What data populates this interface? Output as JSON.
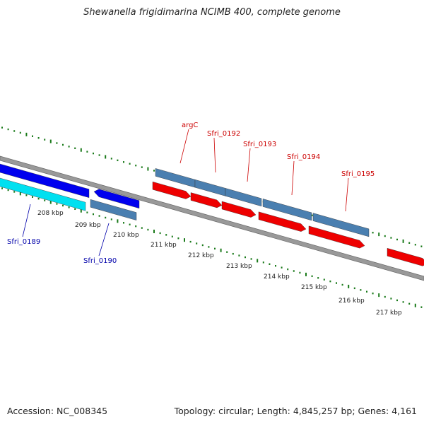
{
  "title": "Shewanella frigidimarina NCIMB 400, complete genome",
  "footer": {
    "accession": "Accession: NC_008345",
    "stats": "Topology: circular; Length: 4,845,257 bp; Genes: 4,161"
  },
  "colors": {
    "backbone": "#8a8a8a",
    "gc_marks": "#1a7a1a",
    "fwd_gene": "#4a7fb0",
    "fwd_cds": "#ee0000",
    "rev_gene": "#4a7fb0",
    "rev_cds": "#0000ee",
    "rev_cds_alt": "#00e0f0",
    "label_red": "#cc0000",
    "label_blue": "#0000aa"
  },
  "ticks": [
    "208 kbp",
    "209 kbp",
    "210 kbp",
    "211 kbp",
    "212 kbp",
    "213 kbp",
    "214 kbp",
    "215 kbp",
    "216 kbp",
    "217 kbp"
  ],
  "gene_labels_top": [
    "argC",
    "Sfri_0192",
    "Sfri_0193",
    "Sfri_0194",
    "Sfri_0195"
  ],
  "gene_labels_bottom": [
    "Sfri_0189",
    "Sfri_0190"
  ]
}
